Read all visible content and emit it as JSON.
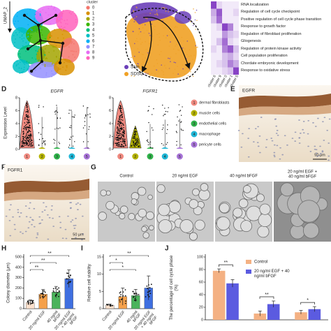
{
  "panels": {
    "A": {
      "axis_label": "UMAP_2",
      "legend_title": "cluster",
      "clusters": [
        "0",
        "1",
        "2",
        "3",
        "4",
        "5",
        "6",
        "7",
        "8",
        "9"
      ],
      "colors": [
        "#f4766d",
        "#d89000",
        "#a3a500",
        "#39b600",
        "#00bf7d",
        "#00bfc4",
        "#00b0f6",
        "#9590ff",
        "#e76bf3",
        "#ff62bc"
      ]
    },
    "B": {
      "legend": [
        "Skin",
        "SDSC"
      ],
      "colors": [
        "#6b3fb8",
        "#f0a125"
      ]
    },
    "C": {
      "terms": [
        "RNA localization",
        "Regulation of cell cycle checkpoint",
        "Positive regulation of cell cycle phase transition",
        "Response to growth factor",
        "Regulation of fibroblast proliferation",
        "Gliogenesis",
        "Regulation of protein kinase activity",
        "Cell population proliferation",
        "Chordate embryonic development",
        "Response to oxidative stress"
      ],
      "columns": [
        "cluster 6",
        "cluster 9",
        "cluster 0",
        "cluster 1",
        "cluster 5"
      ],
      "values": [
        [
          0.9,
          0.2,
          0.1,
          0.1,
          0.1
        ],
        [
          0.4,
          0.8,
          0.1,
          0.1,
          0.2
        ],
        [
          0.3,
          0.7,
          0.1,
          0.1,
          0.1
        ],
        [
          0.1,
          0.2,
          0.9,
          0.6,
          0.1
        ],
        [
          0.1,
          0.1,
          0.5,
          0.3,
          0.2
        ],
        [
          0.1,
          0.3,
          0.7,
          0.2,
          0.1
        ],
        [
          0.2,
          0.1,
          0.6,
          0.8,
          0.3
        ],
        [
          0.1,
          0.1,
          0.3,
          0.4,
          0.2
        ],
        [
          0.1,
          0.2,
          0.3,
          0.6,
          0.4
        ],
        [
          0.1,
          0.1,
          0.2,
          0.3,
          0.9
        ]
      ],
      "color": "#7b2fbe"
    },
    "D": {
      "label": "D",
      "genes": [
        "EGFR",
        "FGFR1"
      ],
      "y_label": "Expression Level",
      "ylim": [
        0,
        8
      ],
      "yticks": [
        0,
        2,
        4,
        6,
        8
      ],
      "clusters": [
        {
          "num": "1",
          "label": "dermal fibroblasts",
          "color": "#f08a80"
        },
        {
          "num": "2",
          "label": "muscle cells",
          "color": "#b5b300"
        },
        {
          "num": "3",
          "label": "endothelial cells",
          "color": "#2fb24a"
        },
        {
          "num": "4",
          "label": "macrophage",
          "color": "#1fb6d6"
        },
        {
          "num": "5",
          "label": "pericyte cells",
          "color": "#a874d8"
        }
      ]
    },
    "E": {
      "label": "E",
      "stain": "EGFR",
      "scale": "50 μm"
    },
    "F": {
      "label": "F",
      "stain": "FGFR1",
      "scale": "50 μm"
    },
    "G": {
      "label": "G",
      "conditions": [
        [
          "Control"
        ],
        [
          "20 ng/ml EGF"
        ],
        [
          "40 ng/ml bFGF"
        ],
        [
          "20 ng/ml EGF +",
          "40 ng/ml bFGF"
        ]
      ]
    }
  },
  "chart_data": [
    {
      "type": "bar",
      "label": "H",
      "y_label": "Colony diameter (μm)",
      "categories": [
        "Control",
        "20 ng/ml EGF",
        "40 ng/ml bFGF",
        "20 ng/ml EGF + 40 ng/ml bFGF"
      ],
      "values": [
        60,
        140,
        160,
        290
      ],
      "errors": [
        25,
        45,
        55,
        85
      ],
      "colors": [
        "#fbe0cc",
        "#f5a04a",
        "#4bb35c",
        "#3f6fe0"
      ],
      "ylim": [
        0,
        500
      ],
      "yticks": [
        0,
        100,
        200,
        300,
        400,
        500
      ],
      "annotations": [
        "**",
        "**",
        "**"
      ]
    },
    {
      "type": "bar",
      "label": "I",
      "y_label": "Relative cell viability",
      "categories": [
        "Control",
        "20 ng/ml EGF",
        "40 ng/ml bFGF",
        "20 ng/ml EGF + 40 ng/ml bFGF"
      ],
      "values": [
        1,
        3.5,
        3.8,
        6
      ],
      "errors": [
        0.3,
        2.5,
        1.8,
        3.5
      ],
      "colors": [
        "#fbe0cc",
        "#f5a04a",
        "#4bb35c",
        "#3f6fe0"
      ],
      "ylim": [
        0,
        15
      ],
      "yticks": [
        0,
        5,
        10,
        15
      ],
      "annotations": [
        "*",
        "*",
        "**"
      ]
    },
    {
      "type": "bar",
      "label": "J",
      "y_label": "The percentage of cell cycle phase (%)",
      "categories": [
        null,
        null,
        null
      ],
      "series": [
        {
          "name": "Control",
          "color": "#f4b183",
          "values": [
            78,
            10,
            12
          ],
          "errors": [
            3,
            4,
            3
          ]
        },
        {
          "name": "20 ng/ml EGF + 40 ng/ml bFGF",
          "color": "#5b5be0",
          "values": [
            58,
            25,
            17
          ],
          "errors": [
            6,
            5,
            4
          ]
        }
      ],
      "ylim": [
        0,
        100
      ],
      "yticks": [
        0,
        20,
        40,
        60,
        80,
        100
      ],
      "annotations": [
        "**",
        "**",
        "*"
      ]
    }
  ]
}
